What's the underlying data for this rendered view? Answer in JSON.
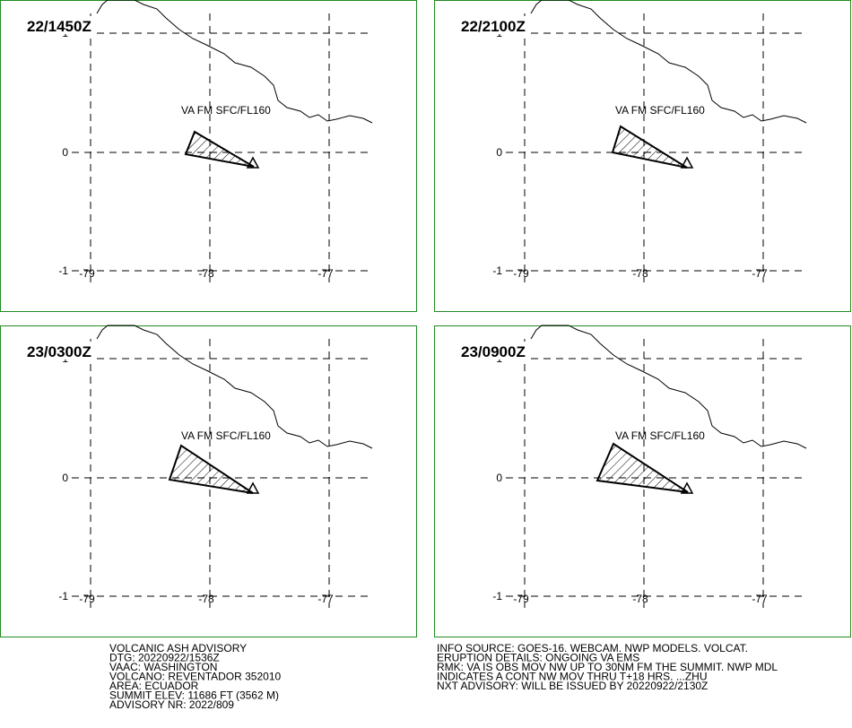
{
  "panels": [
    {
      "label": "22/1450Z",
      "annotation": "VA FM SFC/FL160"
    },
    {
      "label": "22/2100Z",
      "annotation": "VA FM SFC/FL160"
    },
    {
      "label": "23/0300Z",
      "annotation": "VA FM SFC/FL160"
    },
    {
      "label": "23/0900Z",
      "annotation": "VA FM SFC/FL160"
    }
  ],
  "lat_labels": [
    "1",
    "0",
    "-1"
  ],
  "lon_labels": [
    "-79",
    "-78",
    "-77"
  ],
  "advisory_left": [
    "VOLCANIC ASH ADVISORY",
    "DTG: 20220922/1536Z",
    "VAAC: WASHINGTON",
    "VOLCANO: REVENTADOR 352010",
    "AREA: ECUADOR",
    "SUMMIT ELEV: 11686 FT (3562 M)",
    "ADVISORY NR: 2022/809"
  ],
  "advisory_right": [
    "INFO SOURCE: GOES-16. WEBCAM. NWP MODELS. VOLCAT.",
    "ERUPTION DETAILS: ONGOING VA EMS",
    "RMK: VA IS OBS MOV NW UP TO 30NM FM THE SUMMIT. NWP MDL",
    "INDICATES A CONT NW MOV THRU T+18 HRS. ...ZHU",
    "NXT ADVISORY: WILL BE ISSUED BY 20220922/2130Z"
  ]
}
